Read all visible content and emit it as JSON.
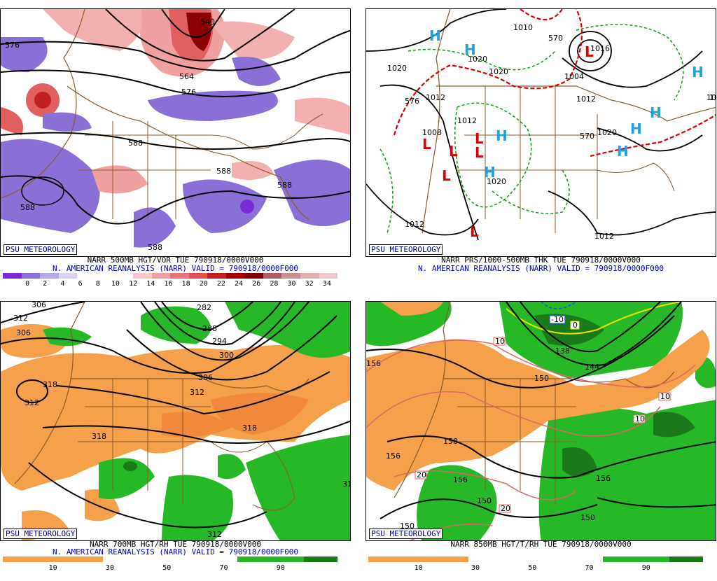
{
  "colors": {
    "vort_pos_light": "#f3b0b0",
    "vort_pos_mid": "#e06060",
    "vort_pos_dark": "#8b0000",
    "vort_neg": "#8a6fd6",
    "rh_dry": "#f5a04a",
    "rh_moist": "#27b827",
    "rh_moist_dark": "#1a7a1a",
    "county_lines": "#8b5a2b",
    "contour": "#000000",
    "low_red": "#dd0000",
    "high_blue": "#1ea3dd",
    "thick_red": "#dd0000",
    "thick_green": "#119911",
    "temp_pink": "#dd6666",
    "temp_yellow": "#e8e000"
  },
  "panels": [
    {
      "badge": "PSU METEOROLOGY",
      "caption1": "NARR 500MB HGT/VOR TUE 790918/0000V000",
      "caption2": "N. AMERICAN REANALYSIS (NARR) VALID = 790918/0000F000",
      "colorbar": [
        "#7b2bd6",
        "#8a6fd6",
        "#b5a6e6",
        "#d9d2f2",
        "#ffffff",
        "#ffffff",
        "#ffffff",
        "#f7c8c8",
        "#f0a0a0",
        "#e87474",
        "#e05050",
        "#c02020",
        "#a00000",
        "#7e0000",
        "#b06060",
        "#c89090",
        "#e0b0b0",
        "#f0c8d0"
      ],
      "ticks": [
        "0",
        "2",
        "4",
        "6",
        "8",
        "10",
        "12",
        "14",
        "16",
        "18",
        "20",
        "22",
        "24",
        "26",
        "28",
        "30",
        "32",
        "34"
      ],
      "contour_labels": [
        "576",
        "540",
        "564",
        "588",
        "588",
        "588",
        "588",
        "588",
        "576"
      ]
    },
    {
      "badge": "PSU METEOROLOGY",
      "caption1": "NARR PRS/1000-500MB THK TUE 790918/0000V000",
      "caption2": "N. AMERICAN REANALYSIS (NARR) VALID = 790918/0000F000",
      "contour_labels": [
        "1020",
        "1012",
        "1008",
        "1012",
        "1020",
        "1020",
        "1012",
        "1012",
        "1020",
        "1012",
        "1016",
        "1004",
        "1010",
        "1020",
        "1012",
        "576",
        "570",
        "570",
        "10"
      ],
      "lows": [
        "L",
        "L",
        "L",
        "L",
        "L",
        "L",
        "L"
      ],
      "highs": [
        "H",
        "H",
        "H",
        "H",
        "H",
        "H",
        "H",
        "H",
        "H"
      ]
    },
    {
      "badge": "PSU METEOROLOGY",
      "caption1": "NARR 700MB HGT/RH TUE 790918/0000V000",
      "caption2": "N. AMERICAN REANALYSIS (NARR) VALID = 790918/0000F000",
      "colorbar": [
        "#f5a04a",
        "#f5a04a",
        "#f5a04a",
        "#ffffff",
        "#ffffff",
        "#ffffff",
        "#ffffff",
        "#27b827",
        "#27b827",
        "#1a7a1a"
      ],
      "ticks": [
        "10",
        "30",
        "50",
        "70",
        "90"
      ],
      "contour_labels": [
        "306",
        "312",
        "306",
        "282",
        "288",
        "294",
        "300",
        "306",
        "312",
        "318",
        "318",
        "318",
        "312",
        "312",
        "31"
      ]
    },
    {
      "badge": "PSU METEOROLOGY",
      "caption1": "NARR 850MB HGT/T/RH TUE 790918/0000V000",
      "caption2": "",
      "colorbar": [
        "#f5a04a",
        "#f5a04a",
        "#f5a04a",
        "#ffffff",
        "#ffffff",
        "#ffffff",
        "#ffffff",
        "#27b827",
        "#27b827",
        "#1a7a1a"
      ],
      "ticks": [
        "10",
        "30",
        "50",
        "70",
        "90"
      ],
      "contour_labels": [
        "156",
        "150",
        "150",
        "138",
        "144",
        "156",
        "156",
        "156",
        "150",
        "150",
        "150",
        "150",
        "150"
      ],
      "temp_labels": [
        "-10",
        "0",
        "10",
        "10",
        "10",
        "20",
        "20"
      ]
    }
  ]
}
